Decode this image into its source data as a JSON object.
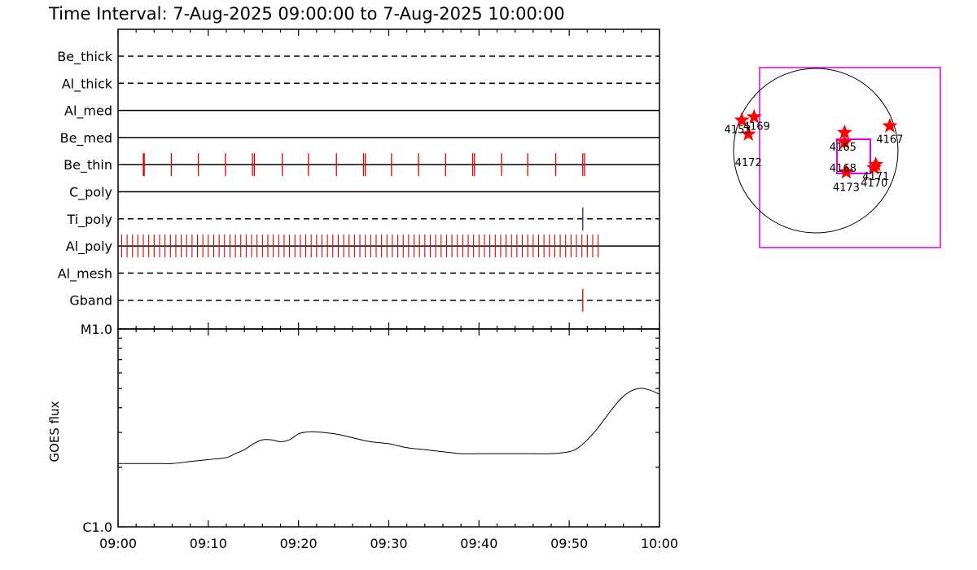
{
  "title": "Time Interval:  7-Aug-2025 09:00:00 to  7-Aug-2025 10:00:00",
  "colors": {
    "exposure": "#e00000",
    "tipoly": "#1a1aa0",
    "box": "#e000e0",
    "star": "#ff0000",
    "line": "#000000"
  },
  "chart_data": [
    {
      "type": "timeline",
      "x_range_minutes": [
        0,
        60
      ],
      "rows": [
        {
          "label": "Be_thick",
          "style": "dashed",
          "marks": []
        },
        {
          "label": "Al_thick",
          "style": "dashed",
          "marks": []
        },
        {
          "label": "Al_med",
          "style": "solid",
          "marks": []
        },
        {
          "label": "Be_med",
          "style": "solid",
          "marks": []
        },
        {
          "label": "Be_thin",
          "style": "solid",
          "color": "#e00000",
          "marks": [
            2.8,
            2.9,
            5.9,
            8.9,
            11.9,
            14.9,
            15.1,
            18.2,
            21.1,
            24.2,
            27.2,
            27.4,
            30.3,
            33.3,
            36.3,
            39.3,
            39.5,
            42.5,
            45.4,
            48.5,
            51.5,
            51.7
          ]
        },
        {
          "label": "C_poly",
          "style": "solid",
          "marks": []
        },
        {
          "label": "Ti_poly",
          "style": "dashed",
          "color": "#1a1aa0",
          "marks": [
            51.5
          ]
        },
        {
          "label": "Al_poly",
          "style": "solid",
          "color": "#e00000",
          "marks": []
        },
        {
          "label": "Al_mesh",
          "style": "dashed",
          "marks": []
        },
        {
          "label": "Gband",
          "style": "dashed",
          "color": "#e00000",
          "marks": [
            51.5
          ]
        }
      ],
      "dense_row": {
        "label": "Al_poly",
        "start": 0.4,
        "end": 53.3,
        "step": 0.6
      }
    },
    {
      "type": "line",
      "ylabel": "GOES flux",
      "y_tick_labels": [
        "C1.0",
        "M1.0"
      ],
      "x_tick_labels": [
        "09:00",
        "09:10",
        "09:20",
        "09:30",
        "09:40",
        "09:50",
        "10:00"
      ],
      "x_minutes": [
        0,
        2,
        4,
        6,
        8,
        10,
        12,
        13,
        14,
        15,
        16,
        17,
        18,
        19,
        20,
        21,
        22,
        24,
        26,
        28,
        30,
        32,
        34,
        36,
        38,
        40,
        42,
        44,
        46,
        48,
        50,
        51,
        52,
        53,
        54,
        55,
        56,
        57,
        58,
        59,
        60
      ],
      "y_frac": [
        0.32,
        0.32,
        0.32,
        0.32,
        0.33,
        0.34,
        0.35,
        0.37,
        0.39,
        0.42,
        0.44,
        0.44,
        0.43,
        0.44,
        0.47,
        0.48,
        0.48,
        0.47,
        0.45,
        0.43,
        0.42,
        0.4,
        0.39,
        0.38,
        0.37,
        0.37,
        0.37,
        0.37,
        0.37,
        0.37,
        0.38,
        0.4,
        0.44,
        0.49,
        0.55,
        0.61,
        0.66,
        0.69,
        0.7,
        0.69,
        0.67
      ]
    },
    {
      "type": "scatter",
      "name": "solar disk map",
      "points": [
        {
          "label": "4153",
          "x": -0.9,
          "y": 0.37
        },
        {
          "label": "4169",
          "x": -0.75,
          "y": 0.41
        },
        {
          "label": "4172",
          "x": -0.82,
          "y": 0.2
        },
        {
          "label": "4165",
          "x": 0.35,
          "y": 0.22
        },
        {
          "label": "4168",
          "x": 0.35,
          "y": 0.1
        },
        {
          "label": "4167",
          "x": 0.9,
          "y": 0.3
        },
        {
          "label": "4173",
          "x": 0.37,
          "y": -0.26
        },
        {
          "label": "4170",
          "x": 0.71,
          "y": -0.21
        },
        {
          "label": "4171",
          "x": 0.73,
          "y": -0.17
        }
      ]
    }
  ]
}
